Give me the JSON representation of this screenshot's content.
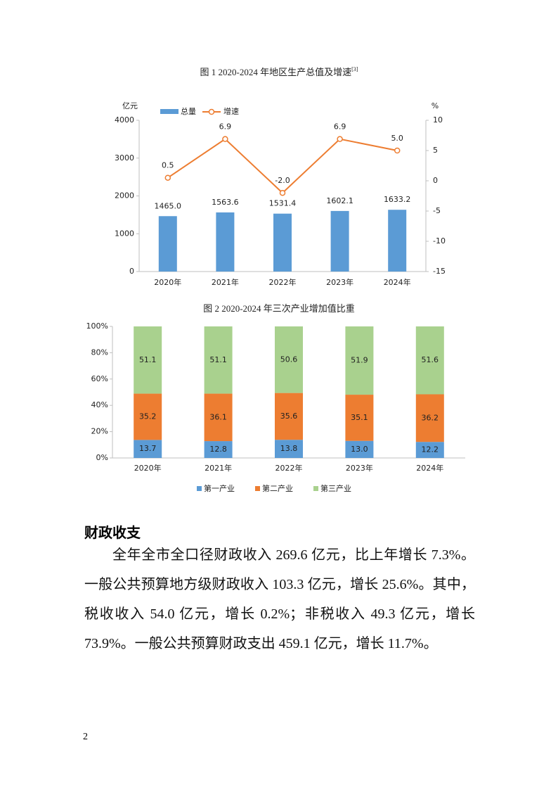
{
  "chart_data": [
    {
      "type": "bar_line",
      "title": "图 1 2020-2024 年地区生产总值及增速",
      "title_note": "[3]",
      "y_label": "亿元",
      "y2_label": "%",
      "categories": [
        "2020年",
        "2021年",
        "2022年",
        "2023年",
        "2024年"
      ],
      "series": [
        {
          "name": "总量",
          "type": "bar",
          "color": "#5b9bd5",
          "values": [
            1465.0,
            1563.6,
            1531.4,
            1602.1,
            1633.2
          ],
          "value_labels": [
            "1465.0",
            "1563.6",
            "1531.4",
            "1602.1",
            "1633.2"
          ]
        },
        {
          "name": "增速",
          "type": "line",
          "axis": "y2",
          "color": "#ed7d31",
          "values": [
            0.5,
            6.9,
            -2.0,
            6.9,
            5.0
          ],
          "value_labels": [
            "0.5",
            "6.9",
            "-2.0",
            "6.9",
            "5.0"
          ]
        }
      ],
      "ylim": [
        0,
        4000
      ],
      "yticks": [
        0,
        1000,
        2000,
        3000,
        4000
      ],
      "y2lim": [
        -15,
        10
      ],
      "y2ticks": [
        -15,
        -10,
        -5,
        0,
        5,
        10
      ],
      "legend": "top"
    },
    {
      "type": "stacked_bar",
      "title": "图 2 2020-2024 年三次产业增加值比重",
      "categories": [
        "2020年",
        "2021年",
        "2022年",
        "2023年",
        "2024年"
      ],
      "series": [
        {
          "name": "第一产业",
          "color": "#5b9bd5",
          "values": [
            13.7,
            12.8,
            13.8,
            13.0,
            12.2
          ],
          "value_labels": [
            "13.7",
            "12.8",
            "13.8",
            "13.0",
            "12.2"
          ]
        },
        {
          "name": "第二产业",
          "color": "#ed7d31",
          "values": [
            35.2,
            36.1,
            35.6,
            35.1,
            36.2
          ],
          "value_labels": [
            "35.2",
            "36.1",
            "35.6",
            "35.1",
            "36.2"
          ]
        },
        {
          "name": "第三产业",
          "color": "#a9d18e",
          "values": [
            51.1,
            51.1,
            50.6,
            51.9,
            51.6
          ],
          "value_labels": [
            "51.1",
            "51.1",
            "50.6",
            "51.9",
            "51.6"
          ]
        }
      ],
      "ylim": [
        0,
        100
      ],
      "yticks": [
        {
          "value": 0,
          "label": "0%"
        },
        {
          "value": 20,
          "label": "20%"
        },
        {
          "value": 40,
          "label": "40%"
        },
        {
          "value": 60,
          "label": "60%"
        },
        {
          "value": 80,
          "label": "80%"
        },
        {
          "value": 100,
          "label": "100%"
        }
      ],
      "legend": "bottom"
    }
  ],
  "section": {
    "heading": "财政收支",
    "paragraph": "全年全市全口径财政收入 269.6 亿元，比上年增长 7.3%。一般公共预算地方级财政收入 103.3 亿元，增长 25.6%。其中，税收收入 54.0 亿元，增长 0.2%；非税收入 49.3 亿元，增长 73.9%。一般公共预算财政支出 459.1 亿元，增长 11.7%。"
  },
  "page_number": "2"
}
